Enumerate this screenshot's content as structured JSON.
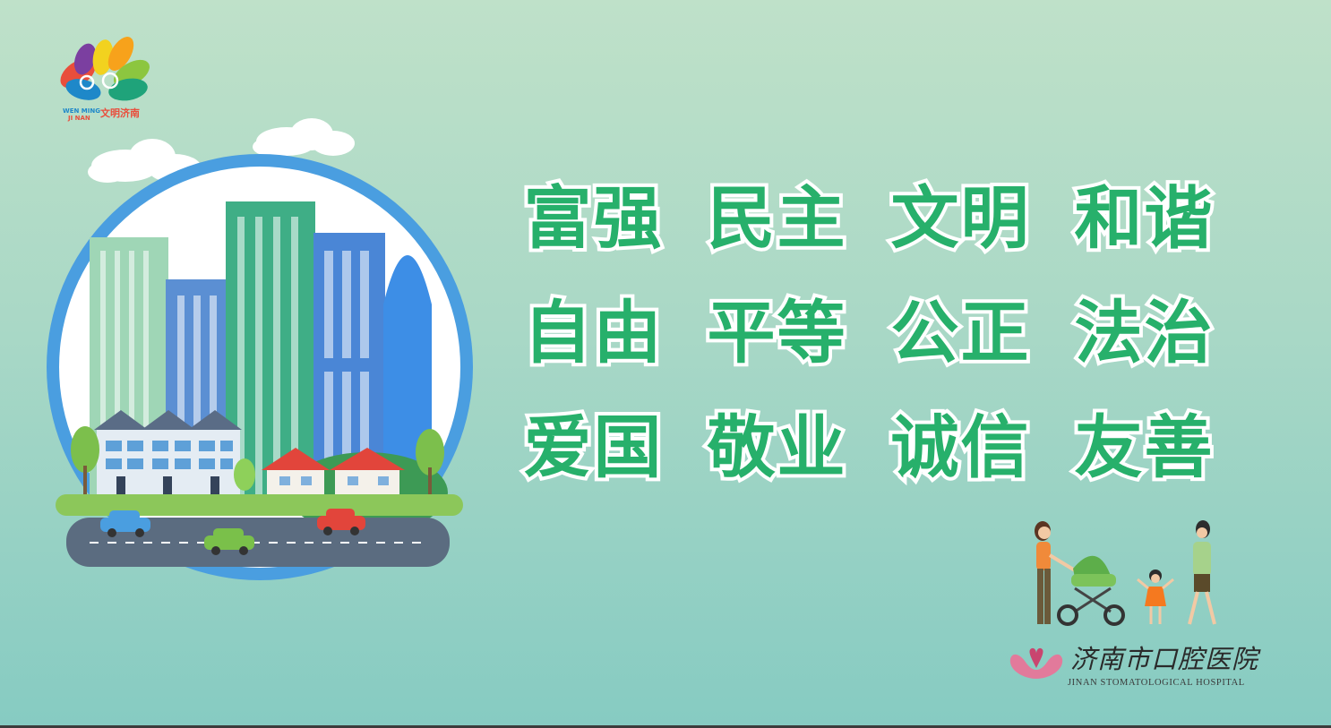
{
  "brand_logo": {
    "line1": "WEN MING",
    "line2": "JI NAN",
    "name_cn": "文明济南",
    "tagline": "",
    "petal_colors": [
      "#e94e3c",
      "#f7a21b",
      "#f2d21f",
      "#8cc63f",
      "#1fa37a",
      "#1e88c9",
      "#7b3fa0"
    ]
  },
  "core_values": [
    "富强",
    "民主",
    "文明",
    "和谐",
    "自由",
    "平等",
    "公正",
    "法治",
    "爱国",
    "敬业",
    "诚信",
    "友善"
  ],
  "hospital": {
    "name_cn": "济南市口腔医院",
    "name_en": "JINAN STOMATOLOGICAL HOSPITAL"
  },
  "colors": {
    "text_green": "#27b06b",
    "text_outline": "#ffffff",
    "ring_blue": "#4a9ee0",
    "background_top": "#bfe1c9",
    "background_bottom": "#86cbc2",
    "hospital_mark": "#e27a9b"
  }
}
